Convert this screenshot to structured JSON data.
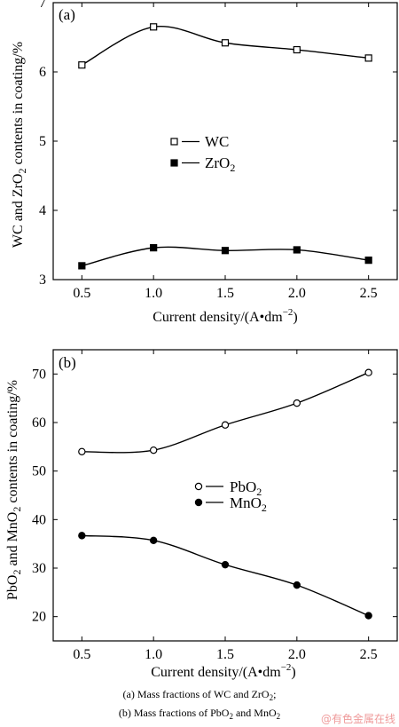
{
  "chart_data": [
    {
      "type": "line",
      "panel_label": "(a)",
      "xlabel": "Current density/(A•dm",
      "xlabel_sup": "−2",
      "xlabel_end": ")",
      "ylabel_parts": [
        "WC and ZrO",
        "2",
        " contents in coating/%"
      ],
      "x": [
        0.5,
        1.0,
        1.5,
        2.0,
        2.5
      ],
      "xticks": [
        "0.5",
        "1.0",
        "1.5",
        "2.0",
        "2.5"
      ],
      "yticks": [
        "3",
        "4",
        "5",
        "6",
        "7"
      ],
      "ylim": [
        3,
        7
      ],
      "xlim": [
        0.3,
        2.7
      ],
      "legend_position": "center",
      "series": [
        {
          "name": "WC",
          "name_sub": "",
          "marker": "open-square",
          "values": [
            6.1,
            6.65,
            6.42,
            6.32,
            6.2
          ]
        },
        {
          "name": "ZrO",
          "name_sub": "2",
          "marker": "filled-square",
          "values": [
            3.2,
            3.46,
            3.42,
            3.43,
            3.28
          ]
        }
      ]
    },
    {
      "type": "line",
      "panel_label": "(b)",
      "xlabel": "Current density/(A•dm",
      "xlabel_sup": "−2",
      "xlabel_end": ")",
      "ylabel_parts": [
        "PbO",
        "2",
        " and MnO",
        "2",
        " contents in coating/%"
      ],
      "x": [
        0.5,
        1.0,
        1.5,
        2.0,
        2.5
      ],
      "xticks": [
        "0.5",
        "1.0",
        "1.5",
        "2.0",
        "2.5"
      ],
      "yticks": [
        "20",
        "30",
        "40",
        "50",
        "60",
        "70"
      ],
      "ylim": [
        15,
        75
      ],
      "xlim": [
        0.3,
        2.7
      ],
      "legend_position": "center",
      "series": [
        {
          "name": "PbO",
          "name_sub": "2",
          "marker": "open-circle",
          "values": [
            54,
            54.3,
            59.5,
            64,
            70.3
          ]
        },
        {
          "name": "MnO",
          "name_sub": "2",
          "marker": "filled-circle",
          "values": [
            36.7,
            35.7,
            30.7,
            26.5,
            20.2
          ]
        }
      ]
    }
  ],
  "caption": {
    "line1_parts": [
      "(a)  Mass  fractions  of  WC  and  ZrO",
      "2",
      ";"
    ],
    "line2_parts": [
      "(b) Mass fractions of PbO",
      "2",
      " and MnO",
      "2"
    ]
  },
  "watermark": "@有色金属在线"
}
